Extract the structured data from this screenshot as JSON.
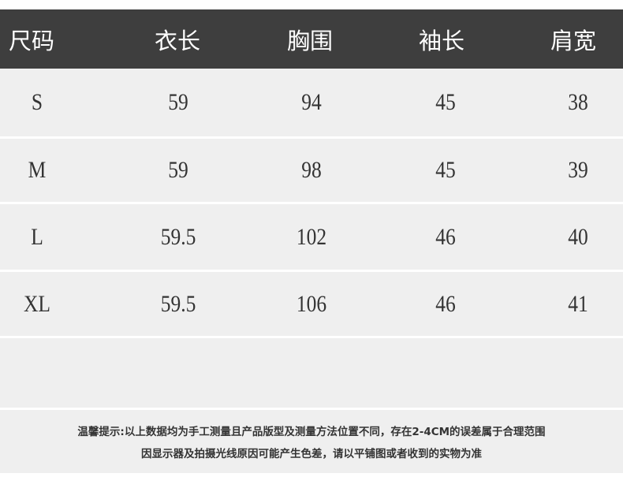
{
  "table": {
    "headers": [
      "尺码",
      "衣长",
      "胸围",
      "袖长",
      "肩宽"
    ],
    "rows": [
      [
        "S",
        "59",
        "94",
        "45",
        "38"
      ],
      [
        "M",
        "59",
        "98",
        "45",
        "39"
      ],
      [
        "L",
        "59.5",
        "102",
        "46",
        "40"
      ],
      [
        "XL",
        "59.5",
        "106",
        "46",
        "41"
      ]
    ]
  },
  "note": {
    "line1": "温馨提示:以上数据均为手工测量且产品版型及测量方法位置不同，存在2-4CM的误差属于合理范围",
    "line2": "因显示器及拍摄光线原因可能产生色差，请以平铺图或者收到的实物为准"
  },
  "colors": {
    "header_bg": "#3e3e3e",
    "row_bg": "#efefef",
    "text": "#333333"
  }
}
